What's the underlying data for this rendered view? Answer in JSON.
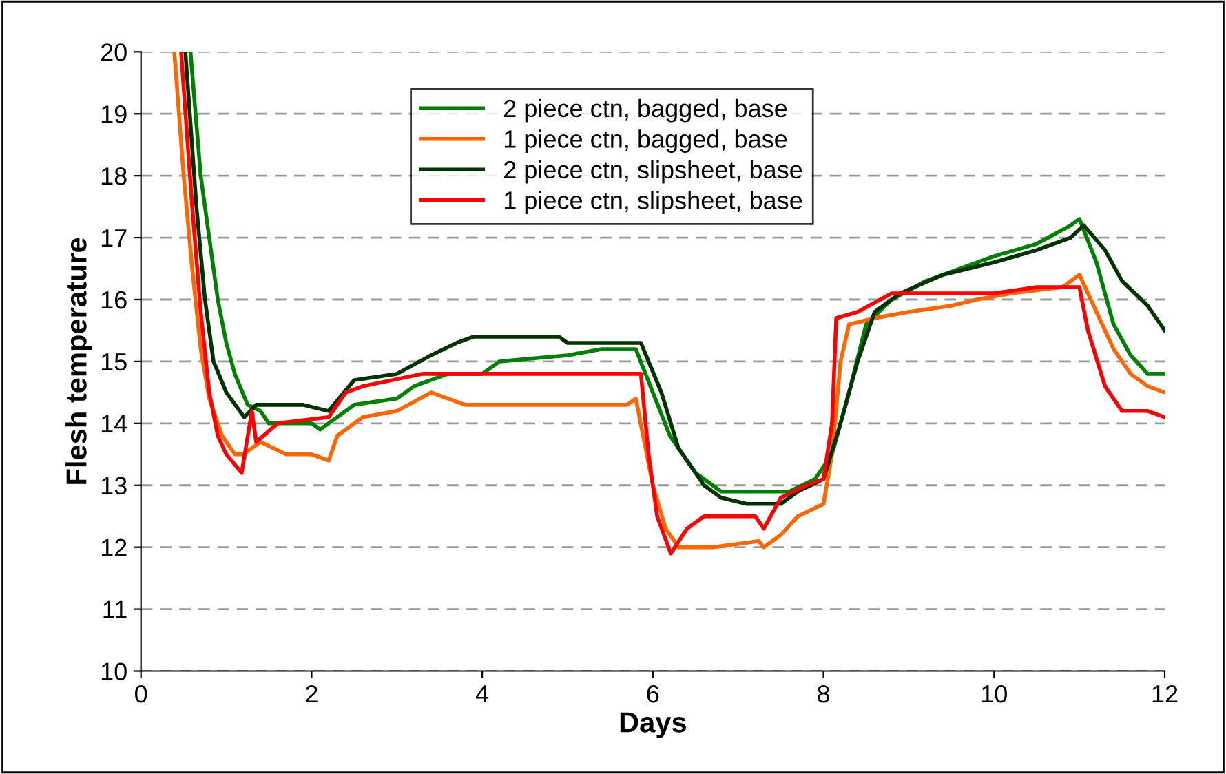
{
  "chart_data": {
    "type": "line",
    "xlabel": "Days",
    "ylabel": "Flesh temperature",
    "xlim": [
      0,
      12
    ],
    "ylim": [
      10,
      20
    ],
    "xticks": [
      0,
      2,
      4,
      6,
      8,
      10,
      12
    ],
    "yticks": [
      10,
      11,
      12,
      13,
      14,
      15,
      16,
      17,
      18,
      19,
      20
    ],
    "grid": "y",
    "legend": "top",
    "marker": "none",
    "line_style": "solid",
    "series": [
      {
        "name": "2 piece ctn, bagged, base",
        "color": "#008000",
        "x": [
          0.58,
          0.7,
          0.8,
          0.9,
          1.0,
          1.1,
          1.25,
          1.4,
          1.5,
          2.0,
          2.1,
          2.3,
          2.5,
          3.0,
          3.2,
          3.6,
          4.0,
          4.2,
          5.0,
          5.4,
          5.8,
          6.0,
          6.2,
          6.5,
          6.8,
          7.3,
          7.6,
          7.9,
          8.1,
          8.3,
          8.5,
          8.8,
          9.2,
          9.6,
          10.0,
          10.5,
          10.9,
          11.0,
          11.2,
          11.4,
          11.6,
          11.8,
          12.0
        ],
        "values": [
          20,
          18,
          17,
          16,
          15.3,
          14.8,
          14.3,
          14.2,
          14.0,
          14.0,
          13.9,
          14.1,
          14.3,
          14.4,
          14.6,
          14.8,
          14.8,
          15.0,
          15.1,
          15.2,
          15.2,
          14.5,
          13.8,
          13.2,
          12.9,
          12.9,
          12.9,
          13.1,
          13.5,
          14.5,
          15.6,
          16.0,
          16.3,
          16.5,
          16.7,
          16.9,
          17.2,
          17.3,
          16.6,
          15.6,
          15.1,
          14.8,
          14.8
        ]
      },
      {
        "name": "1 piece ctn, bagged, base",
        "color": "#ff6600",
        "x": [
          0.39,
          0.5,
          0.6,
          0.7,
          0.8,
          0.95,
          1.1,
          1.2,
          1.4,
          1.7,
          2.0,
          2.2,
          2.3,
          2.6,
          3.0,
          3.4,
          3.8,
          4.5,
          5.7,
          5.8,
          6.0,
          6.15,
          6.3,
          6.7,
          7.24,
          7.3,
          7.5,
          7.7,
          8.0,
          8.1,
          8.2,
          8.3,
          8.6,
          9.0,
          9.5,
          9.8,
          10.2,
          10.8,
          11.0,
          11.2,
          11.4,
          11.6,
          11.8,
          12.0
        ],
        "values": [
          20,
          18,
          16.5,
          15.2,
          14.4,
          13.8,
          13.5,
          13.5,
          13.7,
          13.5,
          13.5,
          13.4,
          13.8,
          14.1,
          14.2,
          14.5,
          14.3,
          14.3,
          14.3,
          14.4,
          13.0,
          12.3,
          12.0,
          12.0,
          12.1,
          12.0,
          12.2,
          12.5,
          12.7,
          13.5,
          15.0,
          15.6,
          15.7,
          15.8,
          15.9,
          16.0,
          16.1,
          16.2,
          16.4,
          15.8,
          15.2,
          14.8,
          14.6,
          14.5
        ]
      },
      {
        "name": "2 piece ctn, slipsheet, base",
        "color": "#003300",
        "x": [
          0.52,
          0.65,
          0.75,
          0.85,
          1.0,
          1.21,
          1.35,
          1.9,
          2.2,
          2.5,
          3.0,
          3.4,
          3.7,
          3.9,
          4.9,
          5.0,
          5.86,
          6.1,
          6.3,
          6.6,
          6.8,
          7.1,
          7.5,
          7.7,
          8.0,
          8.2,
          8.4,
          8.6,
          8.9,
          9.4,
          10.0,
          10.5,
          10.9,
          11.05,
          11.3,
          11.5,
          11.8,
          12.0
        ],
        "values": [
          20,
          17.5,
          16.0,
          15.0,
          14.5,
          14.1,
          14.3,
          14.3,
          14.2,
          14.7,
          14.8,
          15.1,
          15.3,
          15.4,
          15.4,
          15.3,
          15.3,
          14.5,
          13.6,
          13.0,
          12.8,
          12.7,
          12.7,
          12.9,
          13.1,
          14.0,
          15.0,
          15.8,
          16.1,
          16.4,
          16.6,
          16.8,
          17.0,
          17.2,
          16.8,
          16.3,
          15.9,
          15.5
        ]
      },
      {
        "name": "1 piece ctn, slipsheet, base",
        "color": "#ff0000",
        "x": [
          0.47,
          0.6,
          0.7,
          0.8,
          0.9,
          1.0,
          1.18,
          1.3,
          1.35,
          1.6,
          2.2,
          2.4,
          2.6,
          3.3,
          5.86,
          5.95,
          6.05,
          6.21,
          6.4,
          6.6,
          7.2,
          7.3,
          7.5,
          7.8,
          8.0,
          8.1,
          8.15,
          8.4,
          8.8,
          9.5,
          10.0,
          10.5,
          11.0,
          11.1,
          11.3,
          11.5,
          11.8,
          12.0
        ],
        "values": [
          20,
          17.5,
          15.8,
          14.5,
          13.8,
          13.5,
          13.2,
          14.2,
          13.7,
          14.0,
          14.1,
          14.5,
          14.6,
          14.8,
          14.8,
          13.5,
          12.5,
          11.9,
          12.3,
          12.5,
          12.5,
          12.3,
          12.8,
          13.0,
          13.1,
          14.0,
          15.7,
          15.8,
          16.1,
          16.1,
          16.1,
          16.2,
          16.2,
          15.5,
          14.6,
          14.2,
          14.2,
          14.1
        ]
      }
    ]
  }
}
